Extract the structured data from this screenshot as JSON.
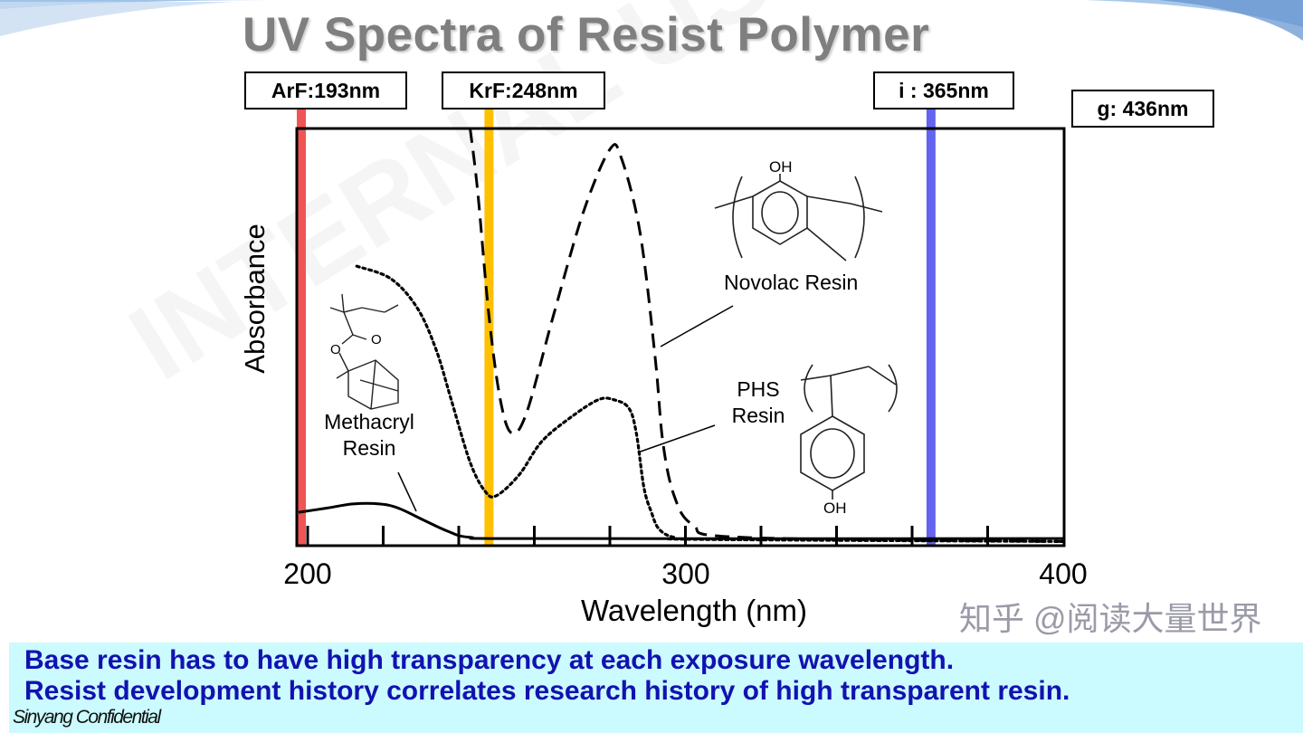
{
  "slide": {
    "title": "UV Spectra of Resist Polymer",
    "watermark": "INTERNAL USE ONLY",
    "confidential": "Sinyang Confidential",
    "zhihu_watermark": "知乎 @阅读大量世界",
    "bullets": [
      "Base resin has to have high transparency at each exposure wavelength.",
      "Resist development history correlates research history of high transparent resin."
    ],
    "colors": {
      "title": "#7f7f7f",
      "banner_bg": "#cbfaff",
      "banner_text": "#1212b0"
    }
  },
  "chart_data": {
    "type": "line",
    "title": "UV Spectra of Resist Polymer",
    "xlabel": "Wavelength (nm)",
    "ylabel": "Absorbance",
    "xlim": [
      197.6,
      400
    ],
    "ylim": [
      0,
      1
    ],
    "xticks": [
      200,
      220,
      240,
      260,
      280,
      300,
      320,
      340,
      360,
      380
    ],
    "xtick_labels": [
      {
        "value": 200,
        "label": "200"
      },
      {
        "value": 300,
        "label": "300"
      },
      {
        "value": 400,
        "label": "400"
      }
    ],
    "exposure_lines": [
      {
        "label": "ArF:193nm",
        "wavelength": 193,
        "color": "#f05555"
      },
      {
        "label": "KrF:248nm",
        "wavelength": 248,
        "color": "#ffc000"
      },
      {
        "label": "i : 365nm",
        "wavelength": 365,
        "color": "#6464f0"
      },
      {
        "label": "g: 436nm",
        "wavelength": 436,
        "color": null
      }
    ],
    "series": [
      {
        "name": "Novolac Resin",
        "style": "dashed",
        "x": [
          243,
          245,
          248,
          251,
          254,
          258,
          265,
          273,
          280,
          283,
          288,
          292,
          294,
          297,
          302,
          315,
          400
        ],
        "y": [
          1.0,
          0.85,
          0.55,
          0.35,
          0.27,
          0.32,
          0.55,
          0.8,
          0.95,
          0.93,
          0.75,
          0.45,
          0.25,
          0.12,
          0.05,
          0.02,
          0.01
        ]
      },
      {
        "name": "PHS Resin",
        "style": "dotted",
        "x": [
          213,
          222,
          229,
          234,
          238,
          243,
          247,
          250,
          256,
          262,
          270,
          277,
          281,
          285,
          287,
          289,
          291,
          293,
          297,
          305,
          400
        ],
        "y": [
          0.67,
          0.64,
          0.57,
          0.47,
          0.35,
          0.2,
          0.13,
          0.12,
          0.17,
          0.25,
          0.31,
          0.35,
          0.35,
          0.33,
          0.27,
          0.14,
          0.08,
          0.04,
          0.02,
          0.015,
          0.01
        ]
      },
      {
        "name": "Methacryl Resin",
        "style": "solid",
        "x": [
          197.6,
          205,
          212,
          219,
          224,
          231,
          237,
          243,
          260,
          400
        ],
        "y": [
          0.08,
          0.09,
          0.1,
          0.1,
          0.09,
          0.06,
          0.035,
          0.02,
          0.017,
          0.017
        ]
      }
    ],
    "annotations": {
      "novolac": "Novolac Resin",
      "phs": [
        "PHS",
        "Resin"
      ],
      "methacryl": [
        "Methacryl",
        "Resin"
      ],
      "oh": "OH",
      "o": "O"
    }
  }
}
